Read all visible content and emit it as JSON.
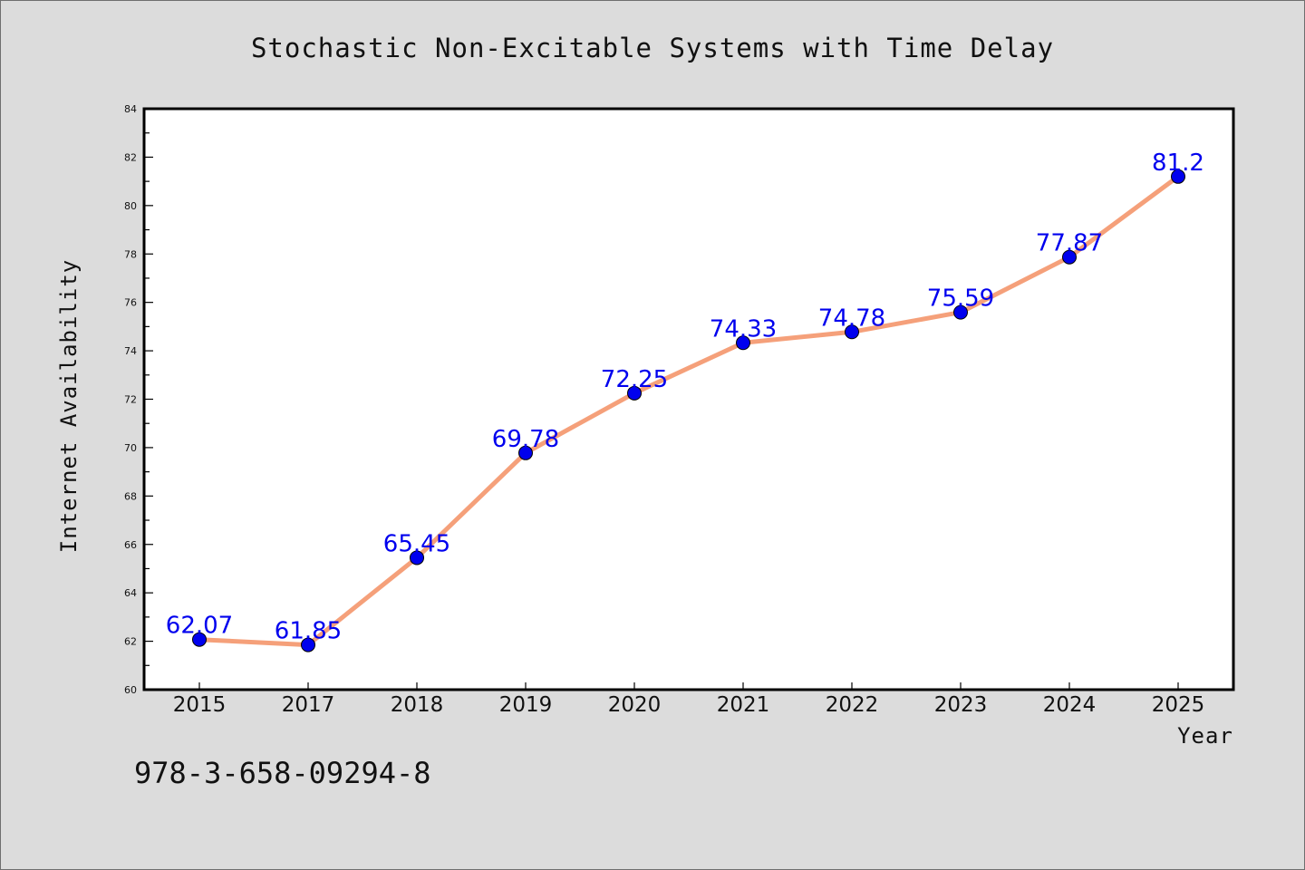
{
  "chart_data": {
    "type": "line",
    "title": "Stochastic Non-Excitable Systems with Time Delay",
    "xlabel": "Year",
    "ylabel": "Internet Availability",
    "categories": [
      "2015",
      "2017",
      "2018",
      "2019",
      "2020",
      "2021",
      "2022",
      "2023",
      "2024",
      "2025"
    ],
    "series": [
      {
        "values": [
          62.07,
          61.85,
          65.45,
          69.78,
          72.25,
          74.33,
          74.78,
          75.59,
          77.87,
          81.2
        ],
        "labels": [
          "62.07",
          "61.85",
          "65.45",
          "69.78",
          "72.25",
          "74.33",
          "74.78",
          "75.59",
          "77.87",
          "81.2"
        ],
        "line_color": "#f5a07a",
        "marker_color": "#0000ee"
      }
    ],
    "ylim": [
      60,
      84
    ],
    "yticks": [
      "60",
      "62",
      "64",
      "66",
      "68",
      "70",
      "72",
      "74",
      "76",
      "78",
      "80",
      "82",
      "84"
    ],
    "grid": false,
    "legend": "none"
  },
  "footer_text": "978-3-658-09294-8",
  "colors": {
    "background": "#dcdcdc",
    "plot_background": "#ffffff",
    "line": "#f5a07a",
    "marker": "#0000ee",
    "data_label": "#0000ee"
  }
}
